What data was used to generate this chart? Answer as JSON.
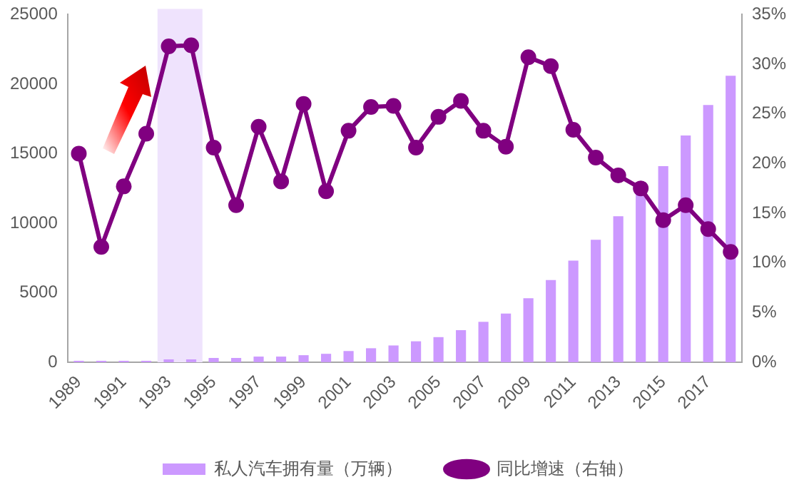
{
  "chart_data": {
    "type": "bar",
    "categories": [
      "1989",
      null,
      "1991",
      null,
      "1993",
      null,
      "1995",
      null,
      "1997",
      null,
      "1999",
      null,
      "2001",
      null,
      "2003",
      null,
      "2005",
      null,
      "2007",
      null,
      "2009",
      null,
      "2011",
      null,
      "2013",
      null,
      "2015",
      null,
      "2017",
      null
    ],
    "series": [
      {
        "name": "私人汽车拥有量（万辆）",
        "color": "#cc99ff",
        "values": [
          100,
          100,
          100,
          100,
          200,
          200,
          300,
          300,
          400,
          400,
          500,
          600,
          800,
          1000,
          1200,
          1500,
          1800,
          2300,
          2900,
          3500,
          4600,
          5900,
          7300,
          8800,
          10500,
          12200,
          14100,
          16300,
          18500,
          20600
        ]
      },
      {
        "name": "同比增速（右轴）",
        "type": "line",
        "axis": "y2",
        "color": "#800080",
        "values": [
          21,
          11.6,
          17.7,
          23,
          31.8,
          31.9,
          21.6,
          15.8,
          23.7,
          18.2,
          26,
          17.2,
          23.3,
          25.7,
          25.8,
          21.6,
          24.7,
          26.3,
          23.3,
          21.7,
          30.7,
          29.8,
          23.4,
          20.6,
          18.8,
          17.5,
          14.3,
          15.8,
          13.4,
          11.1
        ]
      }
    ],
    "ylim": [
      0,
      25000
    ],
    "yticks": [
      0,
      5000,
      10000,
      15000,
      20000,
      25000
    ],
    "y2lim": [
      0,
      35
    ],
    "y2ticks": [
      {
        "value": 0,
        "label": "0%"
      },
      {
        "value": 5,
        "label": "5%"
      },
      {
        "value": 10,
        "label": "10%"
      },
      {
        "value": 15,
        "label": "15%"
      },
      {
        "value": 20,
        "label": "20%"
      },
      {
        "value": 25,
        "label": "25%"
      },
      {
        "value": 30,
        "label": "30%"
      },
      {
        "value": 35,
        "label": "35%"
      }
    ],
    "bands": [
      {
        "axis": "x",
        "from": "1993",
        "to": "1995",
        "color": "#efe3fd"
      }
    ],
    "grid": false,
    "legend": "bottom",
    "marker": "circle",
    "line_style": "solid"
  }
}
